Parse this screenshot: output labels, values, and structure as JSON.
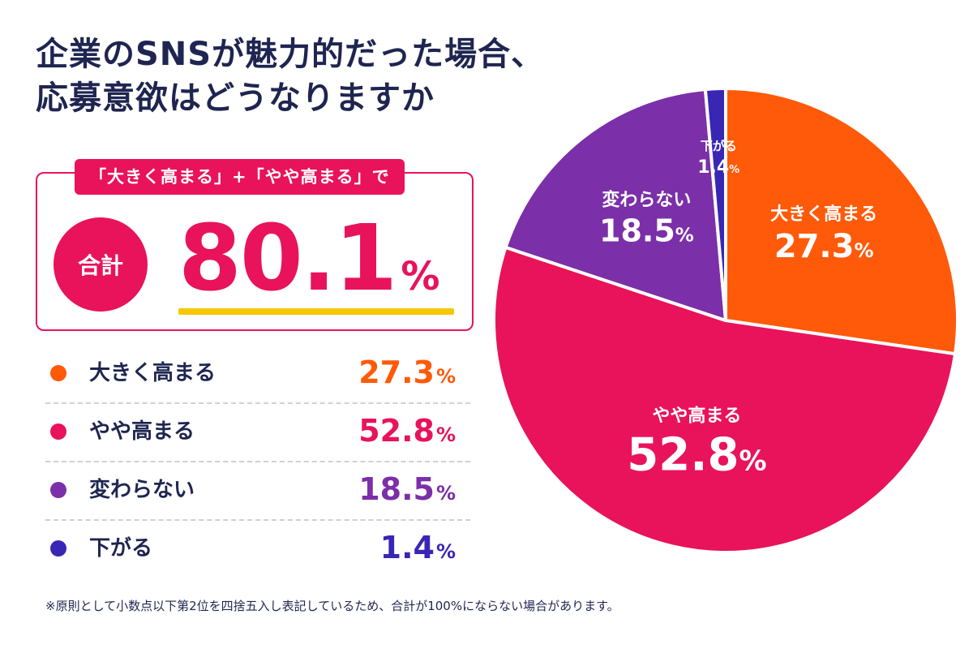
{
  "title": {
    "line1": "企業のSNSが魅力的だった場合、",
    "line2": "応募意欲はどうなりますか"
  },
  "summary": {
    "tag": "「大きく高まる」+「やや高まる」で",
    "total_label": "合計",
    "total_value": "80.1",
    "total_unit": "%"
  },
  "colors": {
    "大きく高まる": "#ff5a09",
    "やや高まる": "#e8135a",
    "変わらない": "#7b2fa8",
    "下がる": "#3a26b5"
  },
  "chart_data": {
    "type": "pie",
    "unit": "%",
    "slices": [
      {
        "label": "大きく高まる",
        "value": 27.3,
        "color": "#ff5a09"
      },
      {
        "label": "やや高まる",
        "value": 52.8,
        "color": "#e8135a"
      },
      {
        "label": "変わらない",
        "value": 18.5,
        "color": "#7b2fa8"
      },
      {
        "label": "下がる",
        "value": 1.4,
        "color": "#3a26b5"
      }
    ]
  },
  "legend": [
    {
      "label": "大きく高まる",
      "value": "27.3",
      "unit": "%"
    },
    {
      "label": "やや高まる",
      "value": "52.8",
      "unit": "%"
    },
    {
      "label": "変わらない",
      "value": "18.5",
      "unit": "%"
    },
    {
      "label": "下がる",
      "value": "1.4",
      "unit": "%"
    }
  ],
  "footnote": "※原則として小数点以下第2位を四捨五入し表記しているため、合計が100%にならない場合があります。"
}
